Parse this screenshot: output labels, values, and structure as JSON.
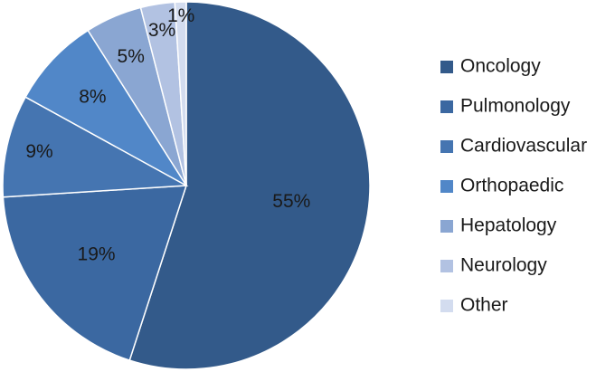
{
  "chart_data": {
    "type": "pie",
    "title": "",
    "categories": [
      "Oncology",
      "Pulmonology",
      "Cardiovascular",
      "Orthopaedic",
      "Hepatology",
      "Neurology",
      "Other"
    ],
    "values": [
      55,
      19,
      9,
      8,
      5,
      3,
      1
    ],
    "value_labels": [
      "55%",
      "19%",
      "9%",
      "8%",
      "5%",
      "3%",
      "1%"
    ],
    "colors": [
      "#335a8a",
      "#3b68a1",
      "#4575b1",
      "#5187c8",
      "#8aa6d2",
      "#b2c2e2",
      "#d3dcef"
    ],
    "legend_position": "right",
    "start_angle": "top (12 o'clock)",
    "direction": "clockwise"
  }
}
